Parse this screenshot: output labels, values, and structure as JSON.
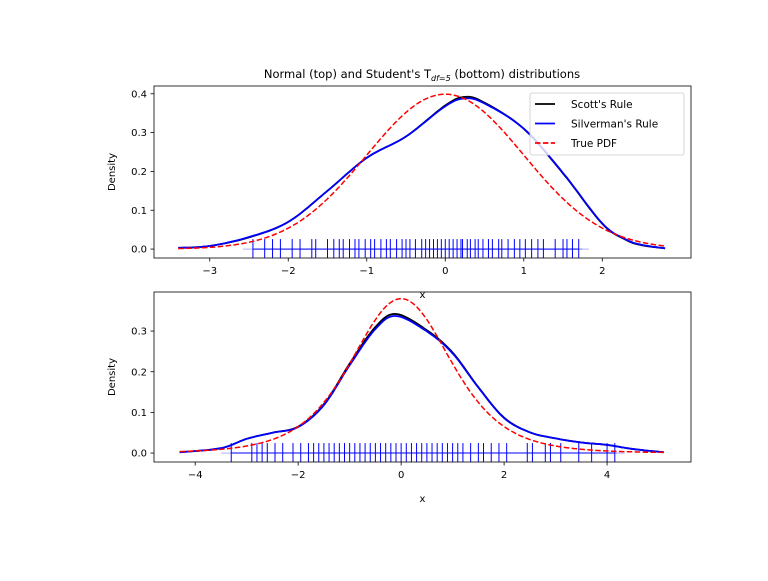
{
  "chart_data": [
    {
      "type": "line",
      "title_main": "Normal (top) and Student's T",
      "title_sub": "df=5",
      "title_tail": " (bottom) distributions",
      "xlabel": "x",
      "ylabel": "Density",
      "xlim": [
        -3.71,
        3.13
      ],
      "ylim": [
        -0.023,
        0.42
      ],
      "xticks": [
        -3,
        -2,
        -1,
        0,
        1,
        2
      ],
      "xtick_labels": [
        "−3",
        "−2",
        "−1",
        "0",
        "1",
        "2"
      ],
      "yticks": [
        0.0,
        0.1,
        0.2,
        0.3,
        0.4
      ],
      "ytick_labels": [
        "0.0",
        "0.1",
        "0.2",
        "0.3",
        "0.4"
      ],
      "legend": {
        "placement": "top-right",
        "entries": [
          "Scott's Rule",
          "Silverman's Rule",
          "True PDF"
        ]
      },
      "series": [
        {
          "name": "Scott's Rule",
          "color": "#000000",
          "style": "solid",
          "x": [
            -3.4,
            -3.0,
            -2.5,
            -2.0,
            -1.5,
            -1.0,
            -0.5,
            0.0,
            0.25,
            0.5,
            1.0,
            1.5,
            2.0,
            2.3,
            2.5,
            2.8
          ],
          "y": [
            0.003,
            0.008,
            0.03,
            0.07,
            0.15,
            0.235,
            0.29,
            0.37,
            0.392,
            0.377,
            0.31,
            0.195,
            0.065,
            0.024,
            0.01,
            0.002
          ]
        },
        {
          "name": "Silverman's Rule",
          "color": "#0000ff",
          "style": "solid",
          "x": [
            -3.4,
            -3.0,
            -2.5,
            -2.0,
            -1.5,
            -1.0,
            -0.5,
            0.0,
            0.25,
            0.5,
            1.0,
            1.5,
            2.0,
            2.3,
            2.5,
            2.8
          ],
          "y": [
            0.003,
            0.008,
            0.031,
            0.07,
            0.15,
            0.235,
            0.29,
            0.368,
            0.388,
            0.375,
            0.31,
            0.196,
            0.066,
            0.025,
            0.011,
            0.002
          ]
        },
        {
          "name": "True PDF",
          "color": "#ff0000",
          "style": "dashed",
          "distribution": "normal",
          "x_range": [
            -3.4,
            2.8
          ]
        }
      ],
      "rug": [
        -2.45,
        -2.3,
        -2.2,
        -2.1,
        -1.95,
        -1.85,
        -1.7,
        -1.65,
        -1.5,
        -1.42,
        -1.35,
        -1.3,
        -1.22,
        -1.15,
        -1.1,
        -1.02,
        -0.95,
        -0.9,
        -0.82,
        -0.75,
        -0.7,
        -0.62,
        -0.55,
        -0.5,
        -0.45,
        -0.38,
        -0.3,
        -0.25,
        -0.2,
        -0.15,
        -0.1,
        -0.05,
        0.0,
        0.05,
        0.1,
        0.15,
        0.2,
        0.22,
        0.28,
        0.32,
        0.38,
        0.42,
        0.48,
        0.55,
        0.6,
        0.68,
        0.72,
        0.8,
        0.88,
        0.95,
        1.02,
        1.1,
        1.18,
        1.25,
        1.4,
        1.5,
        1.55,
        1.62,
        1.7
      ]
    },
    {
      "type": "line",
      "xlabel": "x",
      "ylabel": "Density",
      "xlim": [
        -4.8,
        5.63
      ],
      "ylim": [
        -0.022,
        0.396
      ],
      "xticks": [
        -4,
        -2,
        0,
        2,
        4
      ],
      "xtick_labels": [
        "−4",
        "−2",
        "0",
        "2",
        "4"
      ],
      "yticks": [
        0.0,
        0.1,
        0.2,
        0.3
      ],
      "ytick_labels": [
        "0.0",
        "0.1",
        "0.2",
        "0.3"
      ],
      "series": [
        {
          "name": "Scott's Rule",
          "color": "#000000",
          "style": "solid",
          "x": [
            -4.3,
            -3.5,
            -3.0,
            -2.5,
            -2.0,
            -1.5,
            -1.0,
            -0.5,
            -0.1,
            0.5,
            1.0,
            1.5,
            2.0,
            2.5,
            3.0,
            3.5,
            4.0,
            4.5,
            5.1
          ],
          "y": [
            0.002,
            0.012,
            0.035,
            0.05,
            0.065,
            0.12,
            0.22,
            0.31,
            0.342,
            0.302,
            0.247,
            0.162,
            0.087,
            0.051,
            0.036,
            0.026,
            0.02,
            0.01,
            0.002
          ]
        },
        {
          "name": "Silverman's Rule",
          "color": "#0000ff",
          "style": "solid",
          "x": [
            -4.3,
            -3.5,
            -3.0,
            -2.5,
            -2.0,
            -1.5,
            -1.0,
            -0.5,
            -0.1,
            0.5,
            1.0,
            1.5,
            2.0,
            2.5,
            3.0,
            3.5,
            4.0,
            4.5,
            5.1
          ],
          "y": [
            0.002,
            0.012,
            0.035,
            0.05,
            0.064,
            0.118,
            0.216,
            0.305,
            0.337,
            0.299,
            0.245,
            0.161,
            0.086,
            0.051,
            0.036,
            0.026,
            0.02,
            0.01,
            0.002
          ]
        },
        {
          "name": "True PDF",
          "color": "#ff0000",
          "style": "dashed",
          "distribution": "student-t",
          "df": 5,
          "x_range": [
            -4.3,
            5.1
          ]
        }
      ],
      "rug": [
        -3.3,
        -2.9,
        -2.8,
        -2.7,
        -2.6,
        -2.45,
        -2.3,
        -2.1,
        -1.95,
        -1.8,
        -1.7,
        -1.6,
        -1.5,
        -1.4,
        -1.3,
        -1.2,
        -1.1,
        -1.0,
        -0.9,
        -0.8,
        -0.7,
        -0.6,
        -0.5,
        -0.4,
        -0.3,
        -0.2,
        -0.1,
        0.0,
        0.1,
        0.2,
        0.3,
        0.4,
        0.5,
        0.6,
        0.7,
        0.8,
        0.9,
        1.0,
        1.1,
        1.2,
        1.35,
        1.5,
        1.6,
        1.75,
        1.9,
        2.05,
        2.45,
        2.55,
        2.8,
        2.9,
        3.1,
        3.45,
        3.7,
        4.0,
        4.15
      ]
    }
  ]
}
